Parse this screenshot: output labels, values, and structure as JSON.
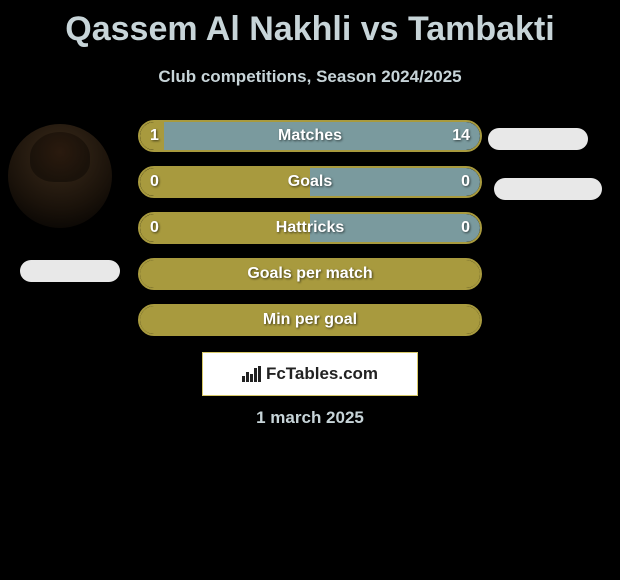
{
  "title": "Qassem Al Nakhli vs Tambakti",
  "subtitle": "Club competitions, Season 2024/2025",
  "date": "1 march 2025",
  "brand": "FcTables.com",
  "colors": {
    "left": "#a89a3e",
    "right": "#7a9a9e",
    "text": "#c7d4d8",
    "bar_border": "#a89a3e"
  },
  "bars": [
    {
      "label": "Matches",
      "left_val": "1",
      "right_val": "14",
      "left_pct": 7,
      "right_pct": 93,
      "full": null
    },
    {
      "label": "Goals",
      "left_val": "0",
      "right_val": "0",
      "left_pct": 50,
      "right_pct": 50,
      "full": null
    },
    {
      "label": "Hattricks",
      "left_val": "0",
      "right_val": "0",
      "left_pct": 50,
      "right_pct": 50,
      "full": null
    },
    {
      "label": "Goals per match",
      "left_val": "",
      "right_val": "",
      "left_pct": 0,
      "right_pct": 0,
      "full": "left"
    },
    {
      "label": "Min per goal",
      "left_val": "",
      "right_val": "",
      "left_pct": 0,
      "right_pct": 0,
      "full": "left"
    }
  ]
}
